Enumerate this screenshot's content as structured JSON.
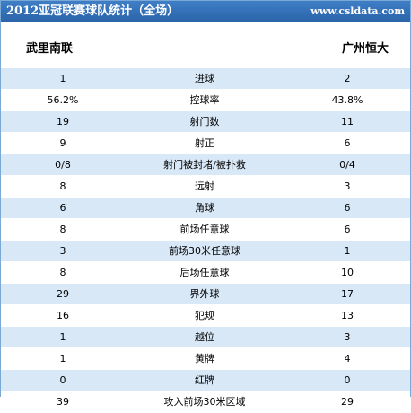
{
  "header": {
    "title": "2012亚冠联赛球队统计（全场）",
    "site": "www.csldata.com"
  },
  "teams": {
    "home": "武里南联",
    "away": "广州恒大"
  },
  "stats": [
    {
      "label": "进球",
      "home": "1",
      "away": "2"
    },
    {
      "label": "控球率",
      "home": "56.2%",
      "away": "43.8%"
    },
    {
      "label": "射门数",
      "home": "19",
      "away": "11"
    },
    {
      "label": "射正",
      "home": "9",
      "away": "6"
    },
    {
      "label": "射门被封堵/被扑救",
      "home": "0/8",
      "away": "0/4"
    },
    {
      "label": "远射",
      "home": "8",
      "away": "3"
    },
    {
      "label": "角球",
      "home": "6",
      "away": "6"
    },
    {
      "label": "前场任意球",
      "home": "8",
      "away": "6"
    },
    {
      "label": "前场30米任意球",
      "home": "3",
      "away": "1"
    },
    {
      "label": "后场任意球",
      "home": "8",
      "away": "10"
    },
    {
      "label": "界外球",
      "home": "29",
      "away": "17"
    },
    {
      "label": "犯规",
      "home": "16",
      "away": "13"
    },
    {
      "label": "越位",
      "home": "1",
      "away": "3"
    },
    {
      "label": "黄牌",
      "home": "1",
      "away": "4"
    },
    {
      "label": "红牌",
      "home": "0",
      "away": "0"
    },
    {
      "label": "攻入前场30米区域",
      "home": "39",
      "away": "29"
    }
  ]
}
